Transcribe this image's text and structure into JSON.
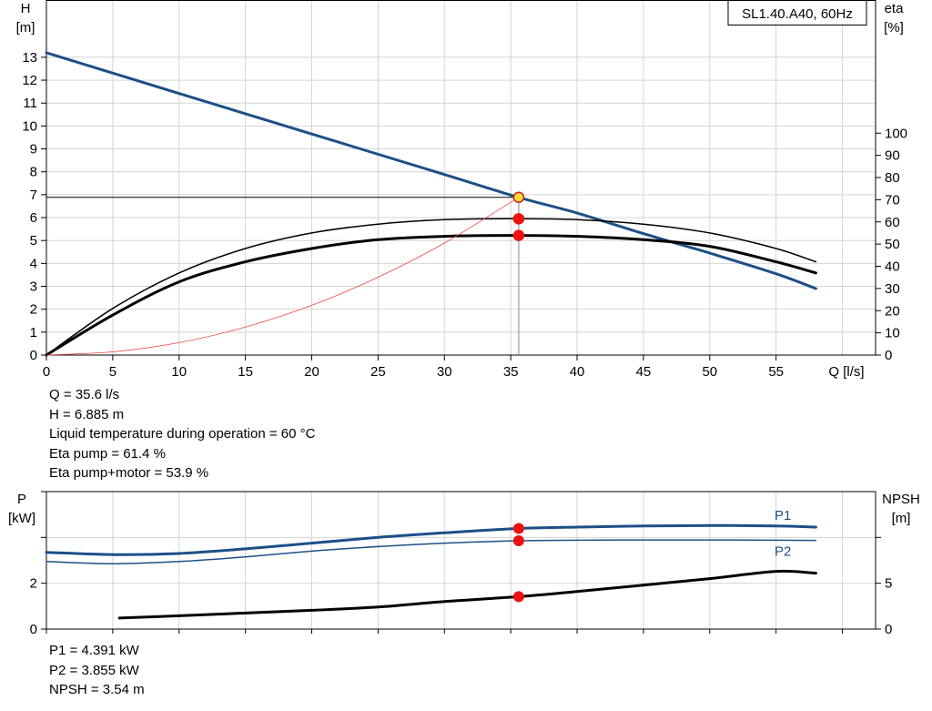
{
  "chart_data": [
    {
      "type": "line",
      "title": "SL1.40.A40, 60Hz",
      "x_label": "Q [l/s]",
      "y_label_left": [
        "H",
        "[m]"
      ],
      "y_label_right": [
        "eta",
        "[%]"
      ],
      "xlim": [
        0,
        62.5
      ],
      "ylim_left": [
        0,
        15.5
      ],
      "ylim_right": [
        0,
        160
      ],
      "x_ticks": [
        0,
        5,
        10,
        15,
        20,
        25,
        30,
        35,
        40,
        45,
        50,
        55
      ],
      "y_ticks_left": [
        0,
        1,
        2,
        3,
        4,
        5,
        6,
        7,
        8,
        9,
        10,
        11,
        12,
        13
      ],
      "y_ticks_right": [
        0,
        10,
        20,
        30,
        40,
        50,
        60,
        70,
        80,
        90,
        100
      ],
      "grid": true,
      "series": [
        {
          "key": "head",
          "axis": "left",
          "color": "#1d4f86",
          "width": 3,
          "x": [
            0,
            10,
            20,
            30,
            35.6,
            40,
            45,
            50,
            55,
            58
          ],
          "y": [
            13.2,
            11.42,
            9.65,
            7.88,
            6.885,
            6.2,
            5.3,
            4.45,
            3.55,
            2.9
          ]
        },
        {
          "key": "eta-pump",
          "axis": "right",
          "color": "#000000",
          "width": 1.5,
          "x": [
            0,
            5,
            10,
            15,
            20,
            25,
            30,
            35,
            40,
            45,
            50,
            55,
            58
          ],
          "y": [
            0,
            21,
            37,
            48,
            55,
            59,
            61,
            61.4,
            61,
            59,
            55,
            48,
            42
          ]
        },
        {
          "key": "eta-total",
          "axis": "right",
          "color": "#000000",
          "width": 3,
          "x": [
            0,
            5,
            10,
            15,
            20,
            25,
            30,
            35,
            40,
            45,
            50,
            55,
            58
          ],
          "y": [
            0,
            18,
            33,
            42,
            48,
            52,
            53.5,
            53.9,
            53.5,
            52,
            49,
            42,
            37
          ]
        },
        {
          "key": "system",
          "axis": "left",
          "color": "#ee4444",
          "width": 0.8,
          "x": [
            0,
            5,
            10,
            15,
            20,
            25,
            30,
            35.6
          ],
          "y": [
            0,
            0.14,
            0.54,
            1.22,
            2.17,
            3.4,
            4.89,
            6.885
          ]
        }
      ],
      "reference_line": {
        "y": 6.885,
        "x": 35.6
      },
      "markers": [
        {
          "x": 35.6,
          "y": 6.885,
          "axis": "left",
          "fill": "#ffdd33"
        },
        {
          "x": 35.6,
          "y": 61.4,
          "axis": "right",
          "fill": "#ee1111"
        },
        {
          "x": 35.6,
          "y": 53.9,
          "axis": "right",
          "fill": "#ee1111"
        }
      ]
    },
    {
      "type": "line",
      "y_label_left": [
        "P",
        "[kW]"
      ],
      "y_label_right": [
        "NPSH",
        "[m]"
      ],
      "xlim": [
        0,
        62.5
      ],
      "ylim_left": [
        0,
        6
      ],
      "ylim_right": [
        0,
        15
      ],
      "y_ticks_left": [
        0,
        2
      ],
      "y_ticks_right": [
        0,
        5
      ],
      "grid": true,
      "series": [
        {
          "key": "p1",
          "name": "P1",
          "axis": "left",
          "color": "#1d4f86",
          "width": 3,
          "x": [
            0,
            5,
            10,
            15,
            20,
            25,
            30,
            35.6,
            40,
            45,
            50,
            55,
            58
          ],
          "y": [
            3.35,
            3.25,
            3.3,
            3.5,
            3.75,
            4.0,
            4.2,
            4.391,
            4.45,
            4.5,
            4.52,
            4.5,
            4.45
          ]
        },
        {
          "key": "p2",
          "name": "P2",
          "axis": "left",
          "color": "#1d4f86",
          "width": 1.5,
          "x": [
            0,
            5,
            10,
            15,
            20,
            25,
            30,
            35.6,
            40,
            45,
            50,
            55,
            58
          ],
          "y": [
            2.95,
            2.85,
            2.95,
            3.15,
            3.4,
            3.6,
            3.75,
            3.855,
            3.88,
            3.89,
            3.89,
            3.88,
            3.87
          ]
        },
        {
          "key": "npsh",
          "axis": "right",
          "color": "#000000",
          "width": 3,
          "x": [
            5.5,
            10,
            15,
            20,
            25,
            30,
            35.6,
            40,
            45,
            50,
            55,
            58
          ],
          "y": [
            1.2,
            1.45,
            1.75,
            2.05,
            2.4,
            3.0,
            3.54,
            4.1,
            4.8,
            5.5,
            6.3,
            6.1
          ]
        }
      ],
      "markers": [
        {
          "x": 35.6,
          "y": 4.391,
          "axis": "left",
          "fill": "#ee1111"
        },
        {
          "x": 35.6,
          "y": 3.855,
          "axis": "left",
          "fill": "#ee1111"
        },
        {
          "x": 35.6,
          "y": 3.54,
          "axis": "right",
          "fill": "#ee1111"
        }
      ]
    }
  ],
  "readout_top": [
    "Q = 35.6 l/s",
    "H = 6.885 m",
    "Liquid temperature during operation = 60 °C",
    "Eta pump = 61.4 %",
    "Eta pump+motor = 53.9 %"
  ],
  "readout_bottom": [
    "P1 = 4.391 kW",
    "P2 = 3.855 kW",
    "NPSH = 3.54 m"
  ]
}
